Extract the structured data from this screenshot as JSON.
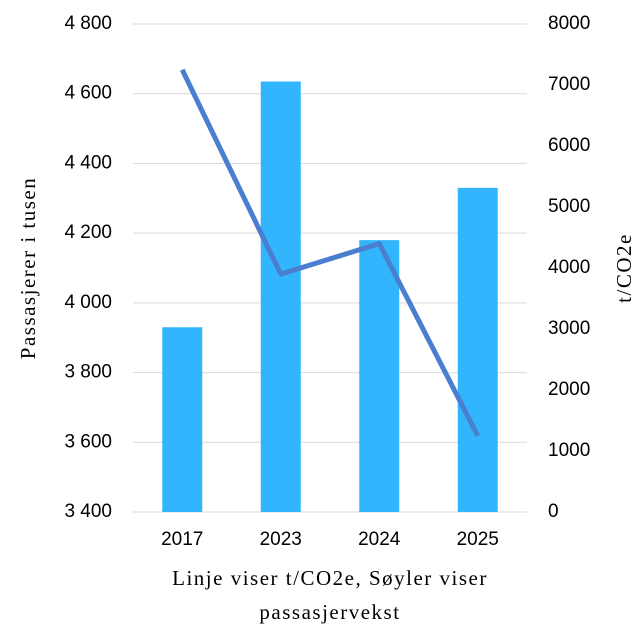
{
  "chart_data": {
    "type": "bar-line",
    "ylabel": "Passasjerer i tusen",
    "y2label": "t/CO2e",
    "xlabel": [
      "Linje viser t/CO2e, Søyler viser",
      "passasjervekst"
    ],
    "categories": [
      "2017",
      "2023",
      "2024",
      "2025"
    ],
    "series": [
      {
        "type": "bar",
        "color": "#33b5fd",
        "values": [
          3930,
          4635,
          4180,
          4330
        ]
      },
      {
        "type": "line",
        "color": "#4a7fcf",
        "axis": "y2",
        "values": [
          7250,
          3900,
          4400,
          1250
        ]
      }
    ],
    "ylim": [
      3400,
      4800
    ],
    "yticks": [
      {
        "value": 3400,
        "label": "3 400"
      },
      {
        "value": 3600,
        "label": "3 600"
      },
      {
        "value": 3800,
        "label": "3 800"
      },
      {
        "value": 4000,
        "label": "4 000"
      },
      {
        "value": 4200,
        "label": "4 200"
      },
      {
        "value": 4400,
        "label": "4 400"
      },
      {
        "value": 4600,
        "label": "4 600"
      },
      {
        "value": 4800,
        "label": "4 800"
      }
    ],
    "y2lim": [
      0,
      8000
    ],
    "y2ticks": [
      0,
      1000,
      2000,
      3000,
      4000,
      5000,
      6000,
      7000,
      8000
    ],
    "grid": true
  }
}
